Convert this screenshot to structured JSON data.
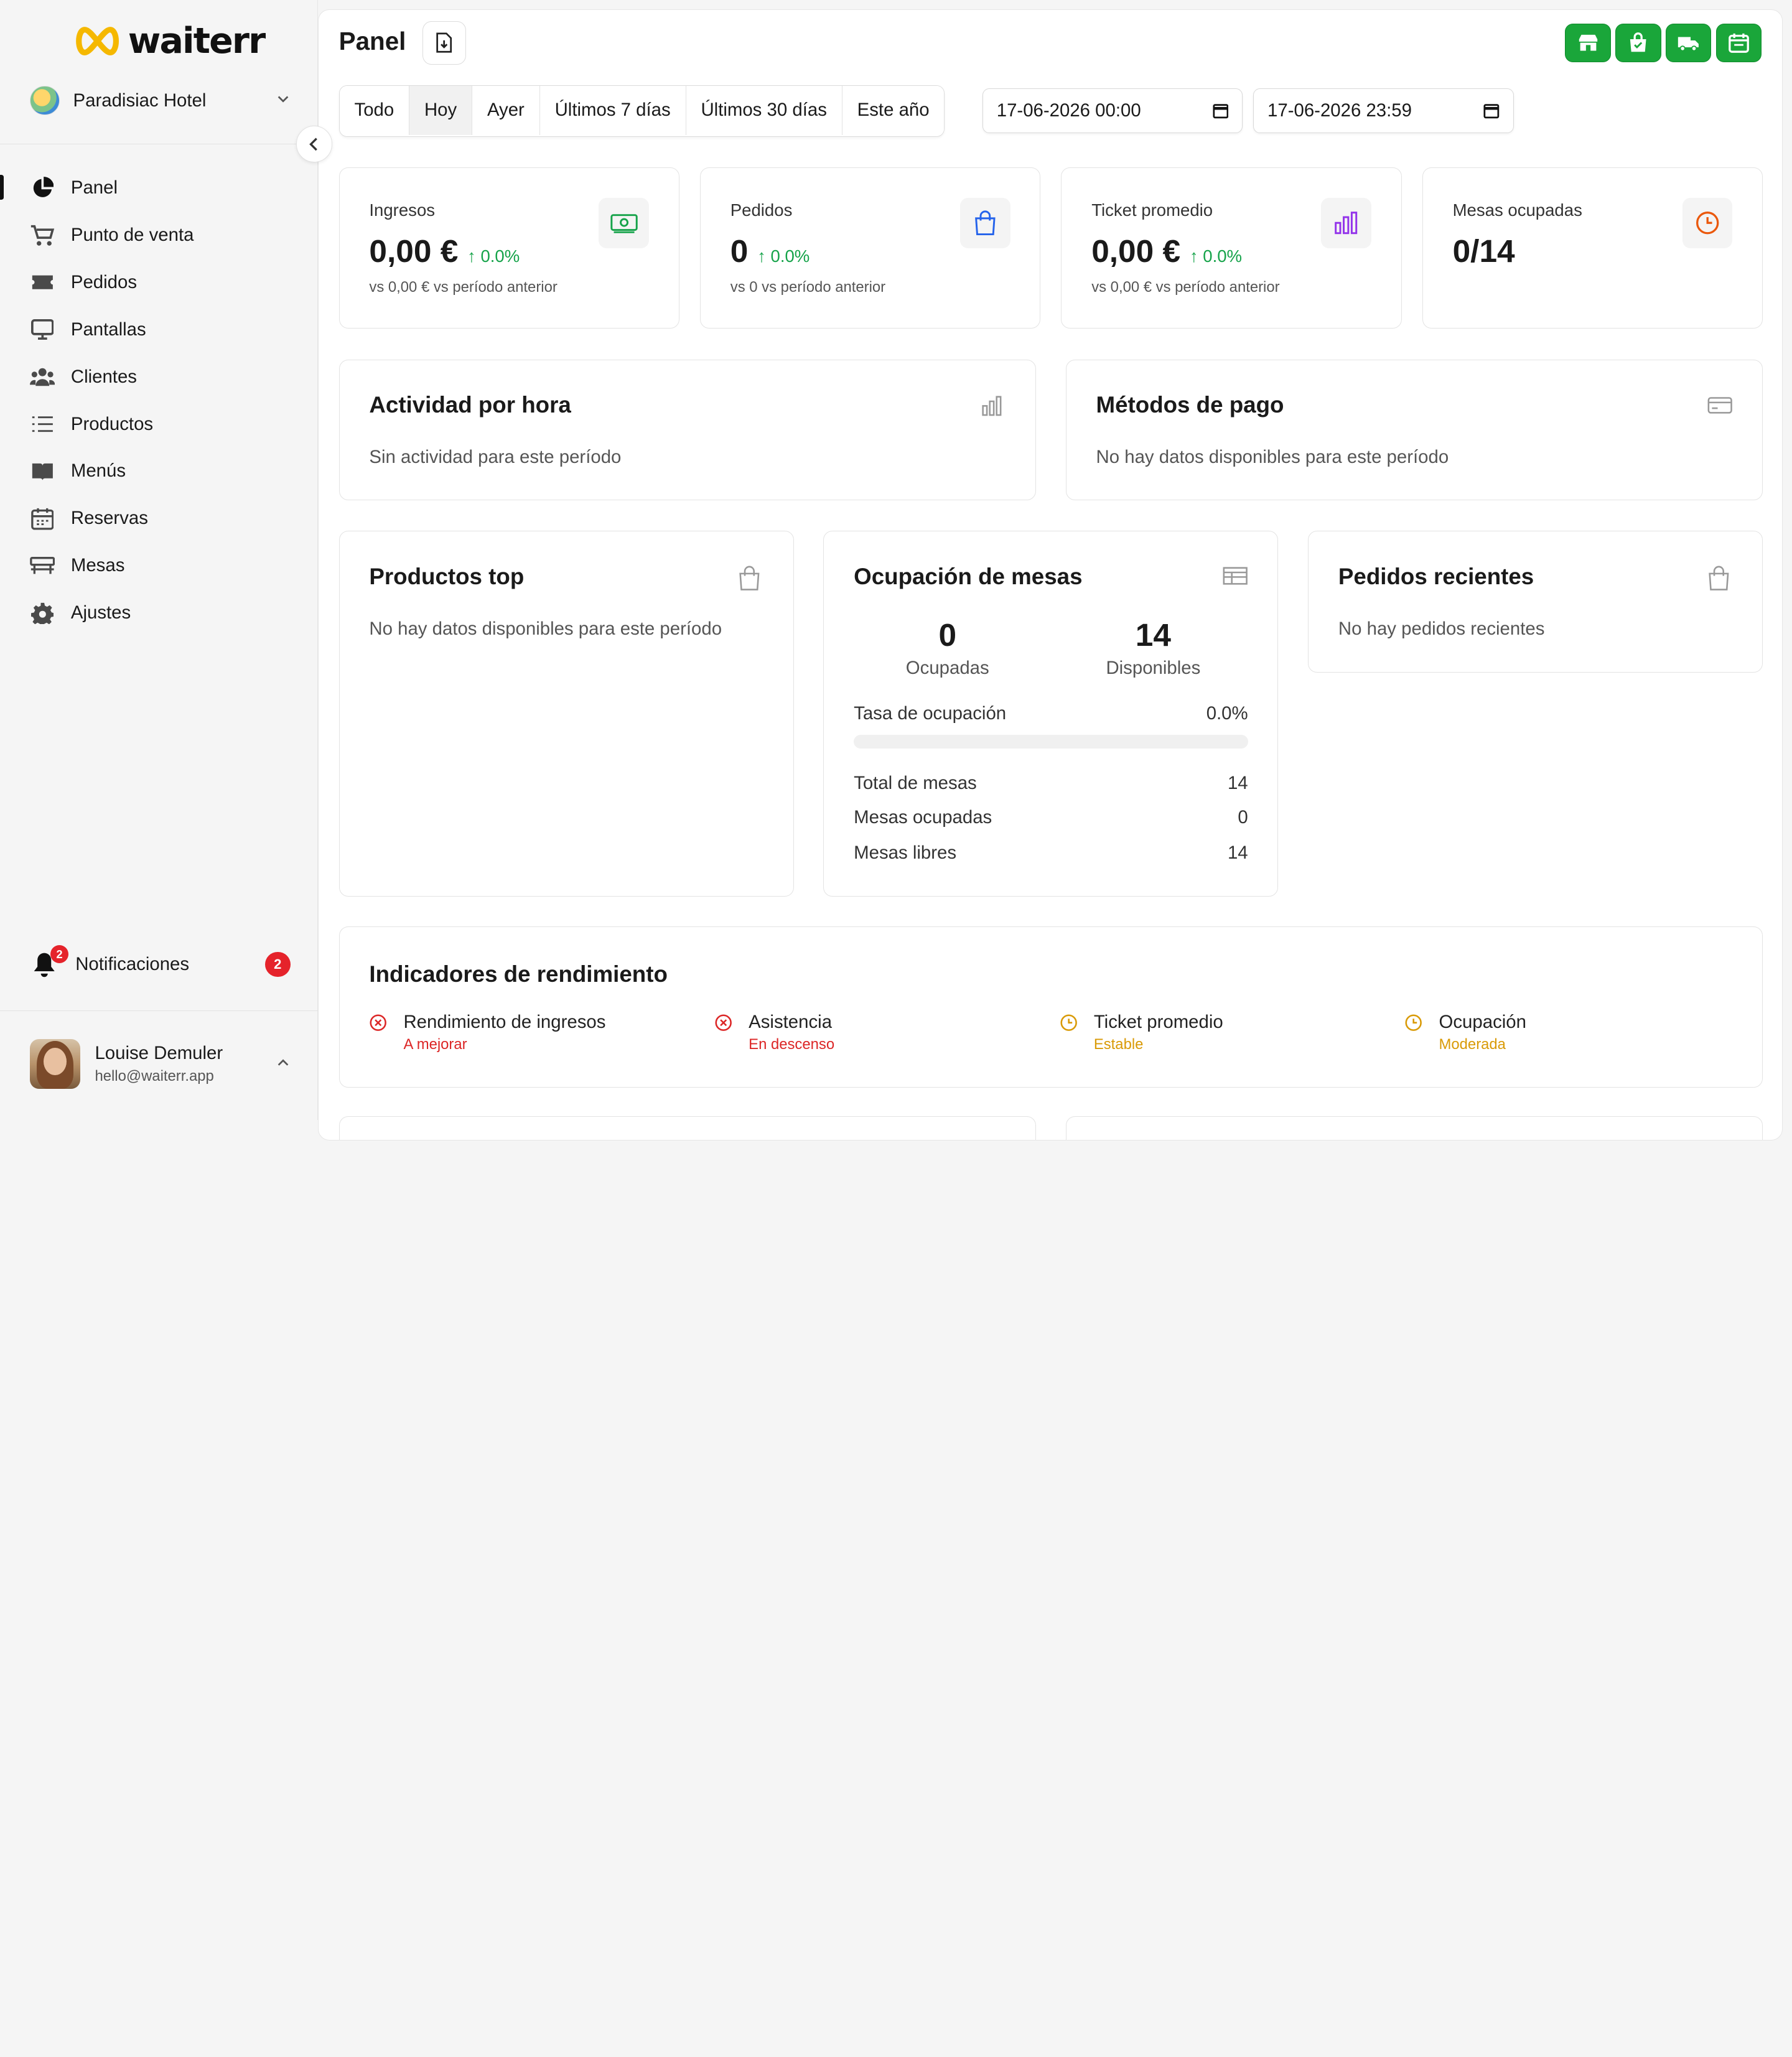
{
  "brand": {
    "name": "waiterr"
  },
  "hotel": {
    "name": "Paradisiac Hotel"
  },
  "sidebar": {
    "items": [
      {
        "label": "Panel",
        "icon": "pie-chart-icon",
        "active": true
      },
      {
        "label": "Punto de venta",
        "icon": "cart-icon"
      },
      {
        "label": "Pedidos",
        "icon": "ticket-icon"
      },
      {
        "label": "Pantallas",
        "icon": "monitor-icon"
      },
      {
        "label": "Clientes",
        "icon": "users-icon"
      },
      {
        "label": "Productos",
        "icon": "list-icon"
      },
      {
        "label": "Menús",
        "icon": "book-icon"
      },
      {
        "label": "Reservas",
        "icon": "calendar-icon"
      },
      {
        "label": "Mesas",
        "icon": "table-icon"
      },
      {
        "label": "Ajustes",
        "icon": "gear-icon"
      }
    ],
    "notifications": {
      "label": "Notificaciones",
      "count": "2",
      "bell_badge": "2"
    },
    "user": {
      "name": "Louise Demuler",
      "email": "hello@waiterr.app"
    }
  },
  "header": {
    "title": "Panel",
    "ranges": [
      {
        "label": "Todo"
      },
      {
        "label": "Hoy",
        "active": true
      },
      {
        "label": "Ayer"
      },
      {
        "label": "Últimos 7 días"
      },
      {
        "label": "Últimos 30 días"
      },
      {
        "label": "Este año"
      }
    ],
    "date_from": "17-06-2026 00:00",
    "date_to": "17-06-2026 23:59",
    "accent_color": "#1aa63a"
  },
  "kpis": [
    {
      "label": "Ingresos",
      "value": "0,00 €",
      "change": "0.0%",
      "sub": "vs 0,00 € vs período anterior",
      "icon": "banknote-icon",
      "icon_color": "#16a34a"
    },
    {
      "label": "Pedidos",
      "value": "0",
      "change": "0.0%",
      "sub": "vs 0 vs período anterior",
      "icon": "shopping-bag-icon",
      "icon_color": "#2563eb"
    },
    {
      "label": "Ticket promedio",
      "value": "0,00 €",
      "change": "0.0%",
      "sub": "vs 0,00 € vs período anterior",
      "icon": "bar-chart-icon",
      "icon_color": "#9333ea"
    },
    {
      "label": "Mesas ocupadas",
      "value": "0/14",
      "icon": "clock-icon",
      "icon_color": "#ea580c"
    }
  ],
  "activity": {
    "title": "Actividad por hora",
    "empty": "Sin actividad para este período"
  },
  "payments": {
    "title": "Métodos de pago",
    "empty": "No hay datos disponibles para este período"
  },
  "top_products": {
    "title": "Productos top",
    "empty": "No hay datos disponibles para este período"
  },
  "occupancy": {
    "title": "Ocupación de mesas",
    "occupied": "0",
    "occupied_label": "Ocupadas",
    "available": "14",
    "available_label": "Disponibles",
    "rate_label": "Tasa de ocupación",
    "rate": "0.0%",
    "rate_fraction": 0,
    "total_label": "Total de mesas",
    "total": "14",
    "busy_label": "Mesas ocupadas",
    "busy": "0",
    "free_label": "Mesas libres",
    "free": "14"
  },
  "recent_orders": {
    "title": "Pedidos recientes",
    "empty": "No hay pedidos recientes"
  },
  "indicators": {
    "title": "Indicadores de rendimiento",
    "items": [
      {
        "name": "Rendimiento de ingresos",
        "status": "A mejorar",
        "color": "#dc2626",
        "icon": "x-circle-icon"
      },
      {
        "name": "Asistencia",
        "status": "En descenso",
        "color": "#dc2626",
        "icon": "x-circle-icon"
      },
      {
        "name": "Ticket promedio",
        "status": "Estable",
        "color": "#d99a06",
        "icon": "clock-icon"
      },
      {
        "name": "Ocupación",
        "status": "Moderada",
        "color": "#d99a06",
        "icon": "clock-icon"
      }
    ]
  }
}
